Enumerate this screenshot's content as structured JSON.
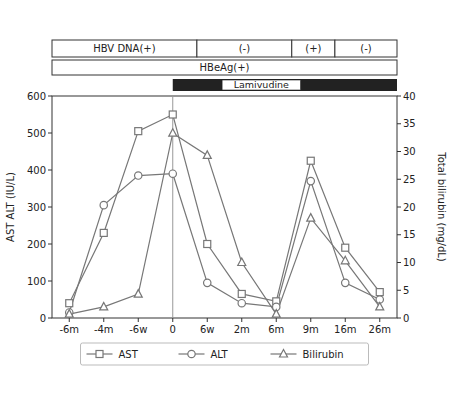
{
  "chart_data": {
    "type": "line",
    "categories": [
      "-6m",
      "-4m",
      "-6w",
      "0",
      "6w",
      "2m",
      "6m",
      "9m",
      "16m",
      "26m"
    ],
    "series": [
      {
        "name": "AST",
        "color": "#777777",
        "marker": "square",
        "values": [
          40,
          230,
          505,
          550,
          200,
          65,
          45,
          425,
          190,
          70
        ]
      },
      {
        "name": "ALT",
        "color": "#777777",
        "marker": "circle",
        "values": [
          15,
          305,
          385,
          390,
          95,
          40,
          30,
          370,
          95,
          50
        ]
      },
      {
        "name": "Bilirubin",
        "color": "#777777",
        "marker": "triangle",
        "axis": "y2",
        "values": [
          0.7,
          2.0,
          4.3,
          33.3,
          29.3,
          10.0,
          0.7,
          18.0,
          10.3,
          2.0
        ]
      }
    ],
    "ylabel": "AST ALT (IU/L)",
    "y2label": "Total bilirubin (mg/dL)",
    "ylim": [
      0,
      600
    ],
    "yticks": [
      0,
      100,
      200,
      300,
      400,
      500,
      600
    ],
    "y2lim": [
      0,
      40
    ],
    "y2ticks": [
      0,
      5,
      10,
      15,
      20,
      25,
      30,
      35,
      40
    ],
    "annotations": [
      "HBV DNA(+)",
      "(-)",
      "(+)",
      "(-)",
      "HBeAg(+)",
      "Lamivudine"
    ],
    "legend": "bottom",
    "grid": false
  }
}
